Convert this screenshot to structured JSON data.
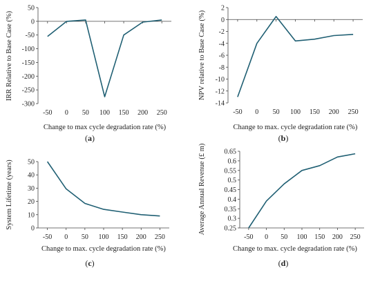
{
  "chart_data": [
    {
      "id": "a",
      "type": "line",
      "panel_label": "(a)",
      "panel_label_letter": "a",
      "title": "",
      "xlabel": "Change to max cycle degradation rate (%)",
      "ylabel": "IRR Relative to Base Case (%)",
      "x": [
        -50,
        0,
        50,
        100,
        150,
        200,
        250
      ],
      "xticks": [
        "-50",
        "0",
        "50",
        "100",
        "150",
        "200",
        "250"
      ],
      "y": [
        -55,
        0,
        5,
        -275,
        -50,
        -3,
        5
      ],
      "ylim": [
        -300,
        50
      ],
      "yticks": [
        50,
        0,
        -50,
        -100,
        -150,
        -200,
        -250,
        -300
      ],
      "grid": false,
      "color": "#1f5f73"
    },
    {
      "id": "b",
      "type": "line",
      "panel_label": "(b)",
      "panel_label_letter": "b",
      "title": "",
      "xlabel": "Change to max. cycle degradation rate (%)",
      "ylabel": "NPV relative to Base Case (%)",
      "x": [
        -50,
        0,
        50,
        100,
        150,
        200,
        250
      ],
      "xticks": [
        "-50",
        "0",
        "50",
        "100",
        "150",
        "200",
        "250"
      ],
      "y": [
        -13,
        -4,
        0.5,
        -3.6,
        -3.3,
        -2.7,
        -2.5
      ],
      "ylim": [
        -14,
        2
      ],
      "yticks": [
        2,
        0,
        -2,
        -4,
        -6,
        -8,
        -10,
        -12,
        -14
      ],
      "grid": false,
      "color": "#1f5f73"
    },
    {
      "id": "c",
      "type": "line",
      "panel_label": "(c)",
      "panel_label_letter": "c",
      "title": "",
      "xlabel": "Change to max. cycle degradation rate (%)",
      "ylabel": "System Lifetime (years)",
      "x": [
        -50,
        0,
        50,
        100,
        150,
        200,
        250
      ],
      "xticks": [
        "-50",
        "0",
        "50",
        "100",
        "150",
        "200",
        "250"
      ],
      "y": [
        50,
        29.5,
        18.5,
        14,
        12,
        10,
        9
      ],
      "ylim": [
        0,
        50
      ],
      "yticks": [
        50,
        40,
        30,
        20,
        10,
        0
      ],
      "grid": false,
      "color": "#1f5f73"
    },
    {
      "id": "d",
      "type": "line",
      "panel_label": "(d)",
      "panel_label_letter": "d",
      "title": "",
      "xlabel": "Change to max. cycle degradation rate (%)",
      "ylabel": "Average Annual Revenue (£ m)",
      "x": [
        -50,
        0,
        50,
        100,
        150,
        200,
        250
      ],
      "xticks": [
        "-50",
        "0",
        "50",
        "100",
        "150",
        "200",
        "250"
      ],
      "y": [
        0.25,
        0.39,
        0.48,
        0.55,
        0.575,
        0.62,
        0.637
      ],
      "ylim": [
        0.25,
        0.65
      ],
      "yticks": [
        0.65,
        0.6,
        0.55,
        0.5,
        0.45,
        0.4,
        0.35,
        0.3,
        0.25
      ],
      "grid": false,
      "color": "#1f5f73"
    }
  ]
}
